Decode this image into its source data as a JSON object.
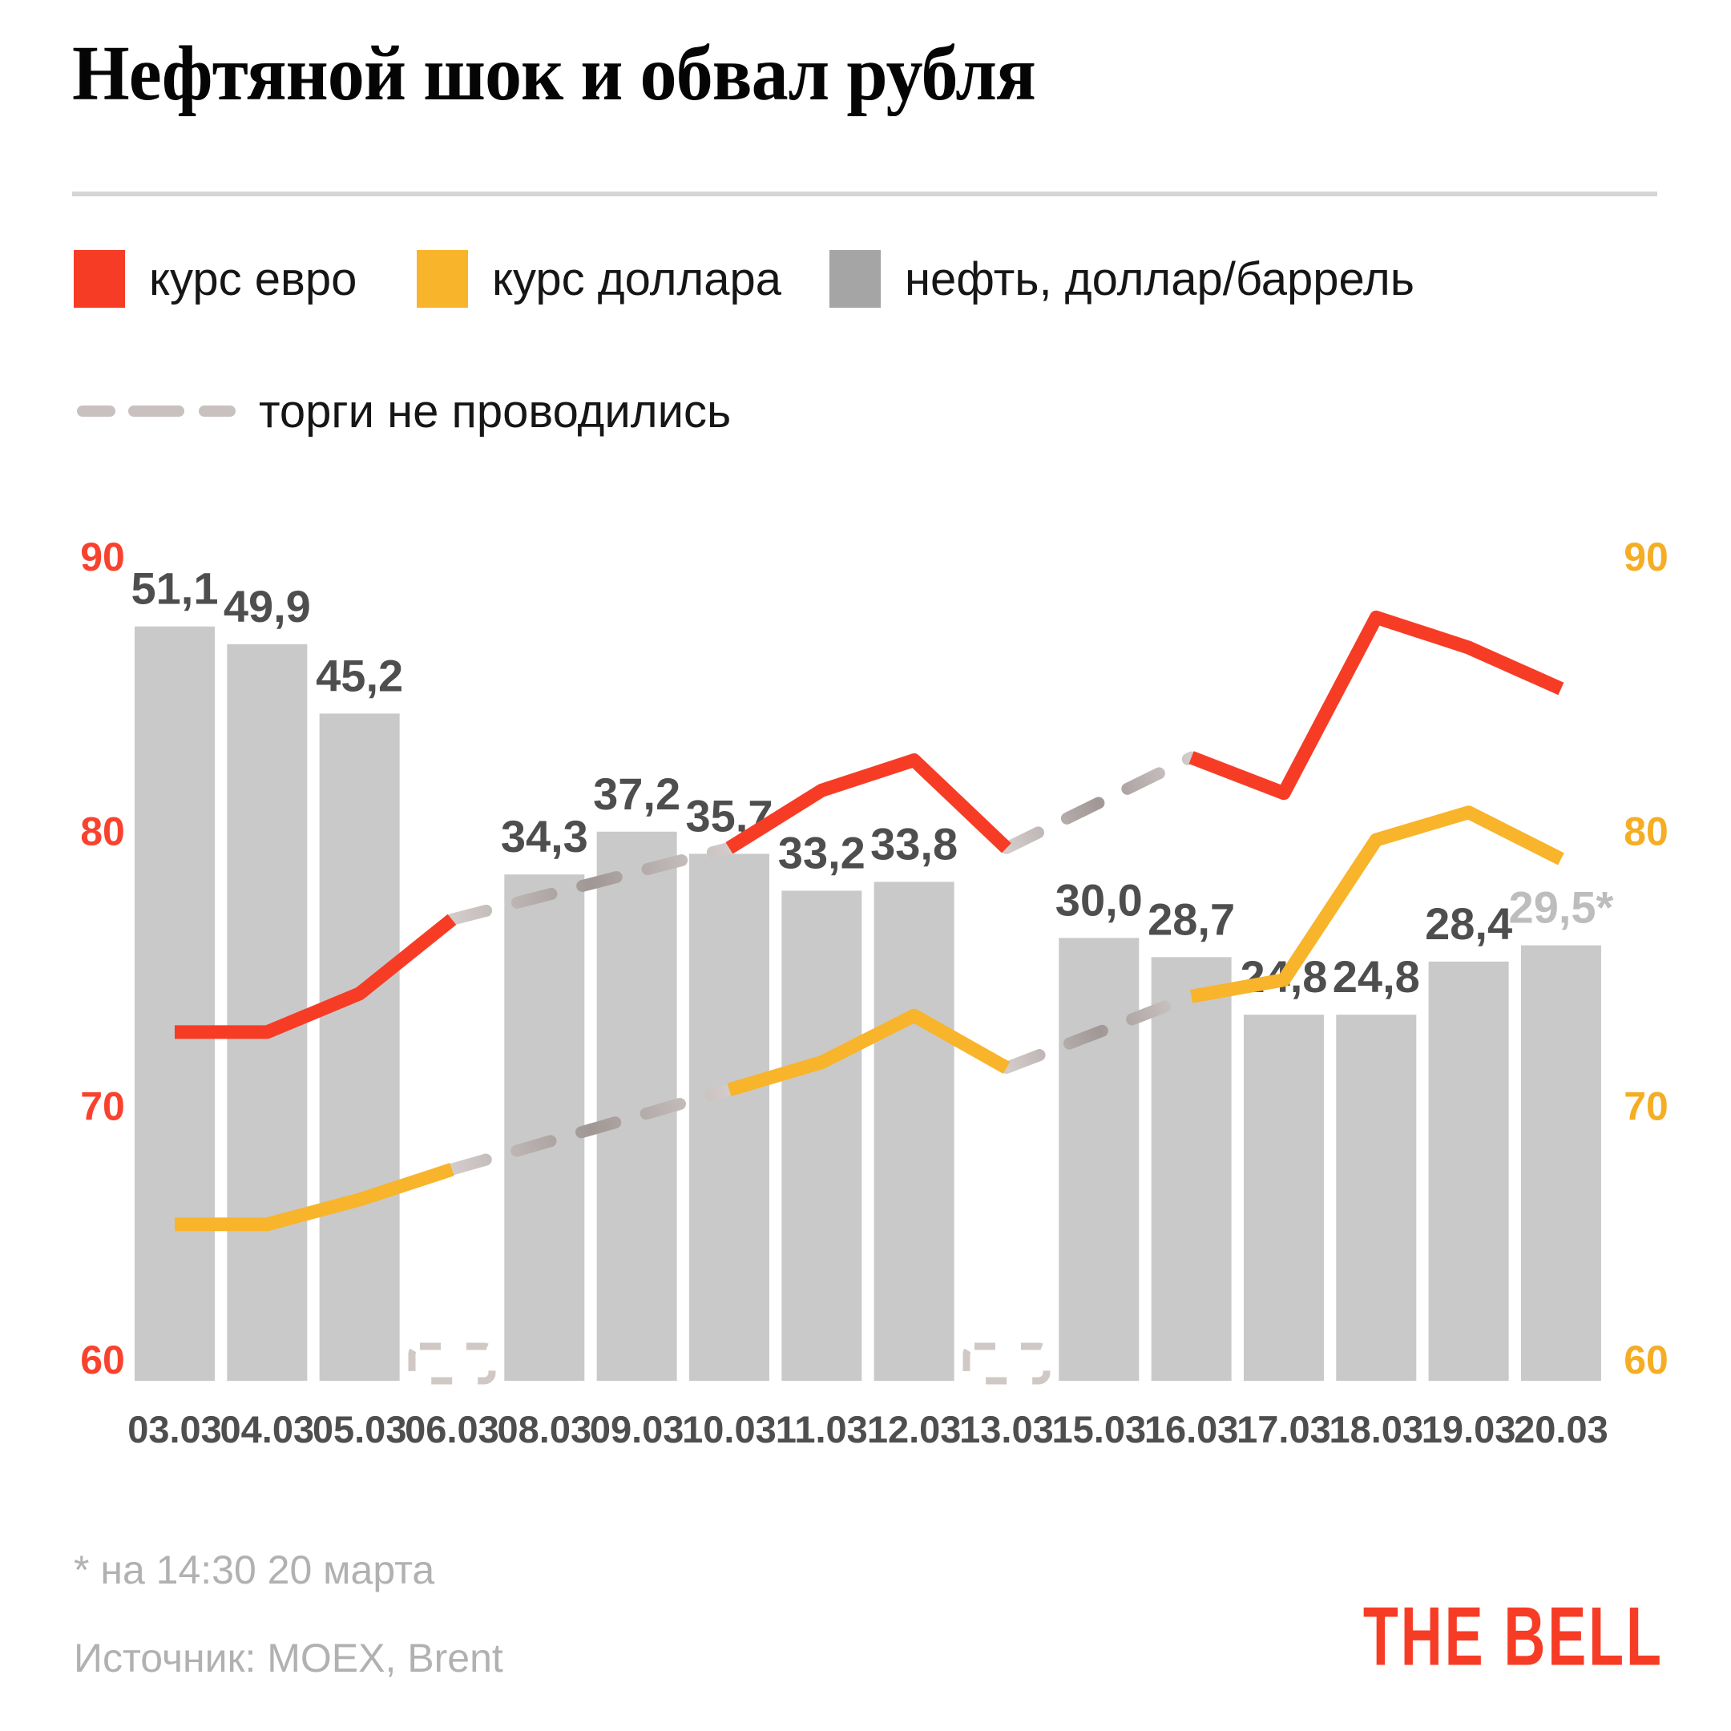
{
  "title": "Нефтяной шок и обвал рубля",
  "legend": {
    "euro_label": "курс евро",
    "dollar_label": "курс доллара",
    "oil_label": "нефть, доллар/баррель",
    "no_trading_label": "торги не проводились"
  },
  "colors": {
    "euro": "#f73c26",
    "dollar": "#f8b42a",
    "oil_bar": "#c9c9c9",
    "oil_legend_swatch": "#a5a5a5",
    "gap_dash_light": "#d3ccca",
    "gap_dash_dark": "#a19896",
    "placeholder_dash": "#d0c8c4",
    "axis_left": "#f9422e",
    "axis_right": "#f5ae24",
    "label_dark": "#4e4e4e",
    "label_muted": "#bdbdbd",
    "legend_dash": "#c9c1bf"
  },
  "footnote": {
    "line1": "* на 14:30 20 марта",
    "line2": "Источник: MOEX, Brent"
  },
  "logo_text": "THE BELL",
  "chart_data": {
    "type": "bar+line",
    "categories": [
      "03.03",
      "04.03",
      "05.03",
      "06.03",
      "08.03",
      "09.03",
      "10.03",
      "11.03",
      "12.03",
      "13.03",
      "15.03",
      "16.03",
      "17.03",
      "18.03",
      "19.03",
      "20.03"
    ],
    "left_axis": {
      "ticks": [
        "90",
        "80",
        "70",
        "60"
      ]
    },
    "right_axis": {
      "ticks": [
        "90",
        "80",
        "70",
        "60"
      ]
    },
    "axis_range": [
      60,
      90
    ],
    "series": [
      {
        "name": "курс евро",
        "type": "line",
        "values": [
          72.7,
          72.7,
          74.1,
          76.8,
          null,
          null,
          79.4,
          81.5,
          82.6,
          79.4,
          null,
          82.7,
          81.4,
          87.8,
          86.7,
          85.2
        ]
      },
      {
        "name": "курс доллара",
        "type": "line",
        "values": [
          65.7,
          65.7,
          66.6,
          67.7,
          null,
          null,
          70.6,
          71.6,
          73.3,
          71.4,
          null,
          74.0,
          74.6,
          79.7,
          80.7,
          79.0
        ]
      },
      {
        "name": "нефть, доллар/баррель",
        "type": "bar",
        "values": [
          51.1,
          49.9,
          45.2,
          null,
          34.3,
          37.2,
          35.7,
          33.2,
          33.8,
          null,
          30.0,
          28.7,
          24.8,
          24.8,
          28.4,
          29.5
        ],
        "labels": [
          "51,1",
          "49,9",
          "45,2",
          null,
          "34,3",
          "37,2",
          "35,7",
          "33,2",
          "33,8",
          null,
          "30,0",
          "28,7",
          "24,8",
          "24,8",
          "28,4",
          "29,5*"
        ],
        "muted_label_indices": [
          15
        ]
      }
    ],
    "no_trading_dates": [
      "06.03",
      "13.03"
    ]
  }
}
